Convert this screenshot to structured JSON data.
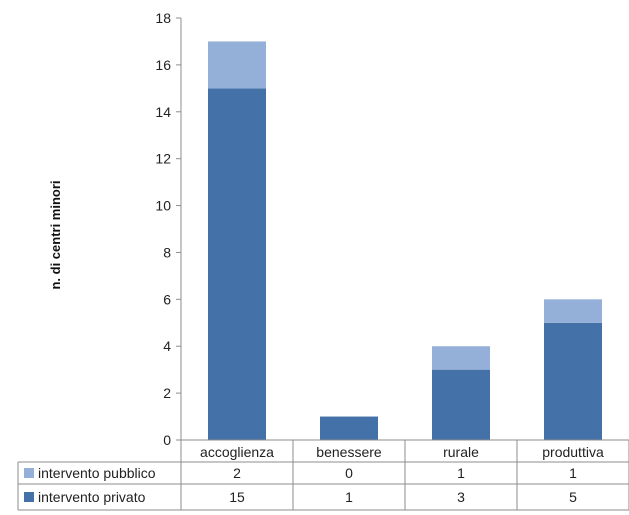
{
  "chart_data": {
    "type": "bar",
    "stacked": true,
    "categories": [
      "accoglienza",
      "benessere",
      "rurale",
      "produttiva"
    ],
    "series": [
      {
        "name": "intervento privato",
        "values": [
          15,
          1,
          3,
          5
        ],
        "color": "#4472a8"
      },
      {
        "name": "intervento pubblico",
        "values": [
          2,
          0,
          1,
          1
        ],
        "color": "#95b0d8"
      }
    ],
    "table_order": [
      1,
      0
    ],
    "ylabel": "n. di centri minori",
    "ylim": [
      0,
      18
    ],
    "yticks": [
      0,
      2,
      4,
      6,
      8,
      10,
      12,
      14,
      16,
      18
    ],
    "grid": false,
    "legend": "data-table-below"
  }
}
